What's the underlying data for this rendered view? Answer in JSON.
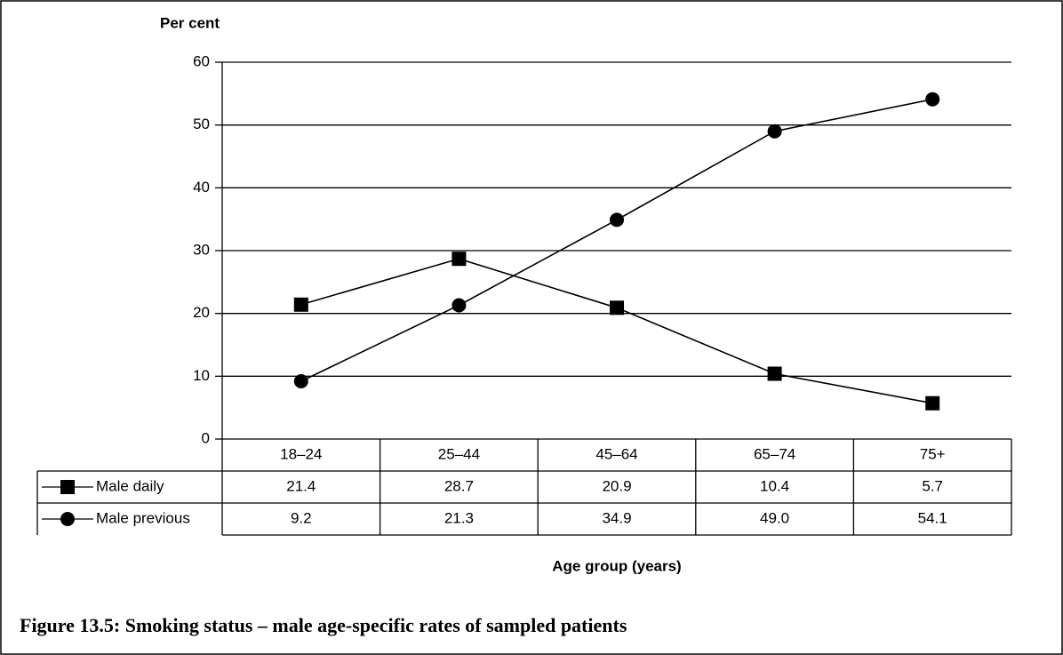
{
  "chart_data": {
    "type": "line",
    "title": "Figure 13.5: Smoking status – male age-specific rates of sampled patients",
    "y_label": "Per cent",
    "x_label": "Age group (years)",
    "categories": [
      "18–24",
      "25–44",
      "45–64",
      "65–74",
      "75+"
    ],
    "series": [
      {
        "name": "Male daily",
        "color": "#000000",
        "marker": "square",
        "values": [
          21.4,
          28.7,
          20.9,
          10.4,
          5.7
        ]
      },
      {
        "name": "Male previous",
        "color": "#000000",
        "marker": "circle",
        "values": [
          9.2,
          21.3,
          34.9,
          49.0,
          54.1
        ],
        "value_labels": [
          "9.2",
          "21.3",
          "34.9",
          "49.0",
          "54.1"
        ]
      }
    ],
    "ylim": [
      0,
      60
    ],
    "yticks": [
      0,
      10,
      20,
      30,
      40,
      50,
      60
    ],
    "grid": true
  }
}
